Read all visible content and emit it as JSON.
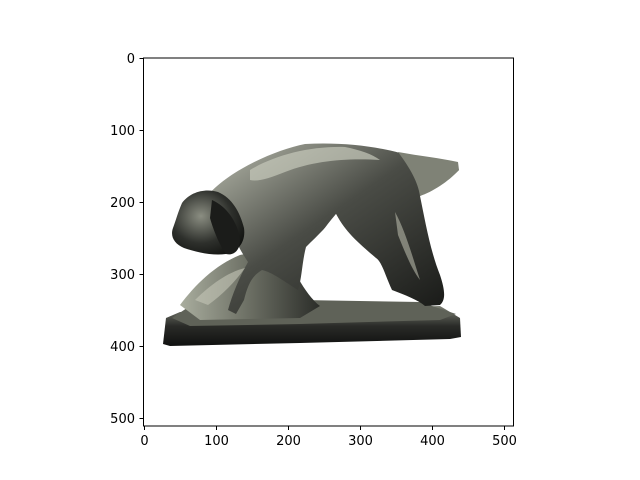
{
  "figure": {
    "image_subject": "grayscale 3D-rendered statue of a crouching dog on a rectangular base",
    "axes": {
      "x_ticks": [
        "0",
        "100",
        "200",
        "300",
        "400",
        "500"
      ],
      "y_ticks": [
        "0",
        "100",
        "200",
        "300",
        "400",
        "500"
      ],
      "xlim": [
        0,
        512
      ],
      "ylim": [
        512,
        0
      ],
      "y_inverted": true
    },
    "colors": {
      "background": "#ffffff",
      "axis": "#000000",
      "statue_dark": "#1a1c19",
      "statue_mid": "#5a5d55",
      "statue_light": "#b9bcae"
    }
  }
}
